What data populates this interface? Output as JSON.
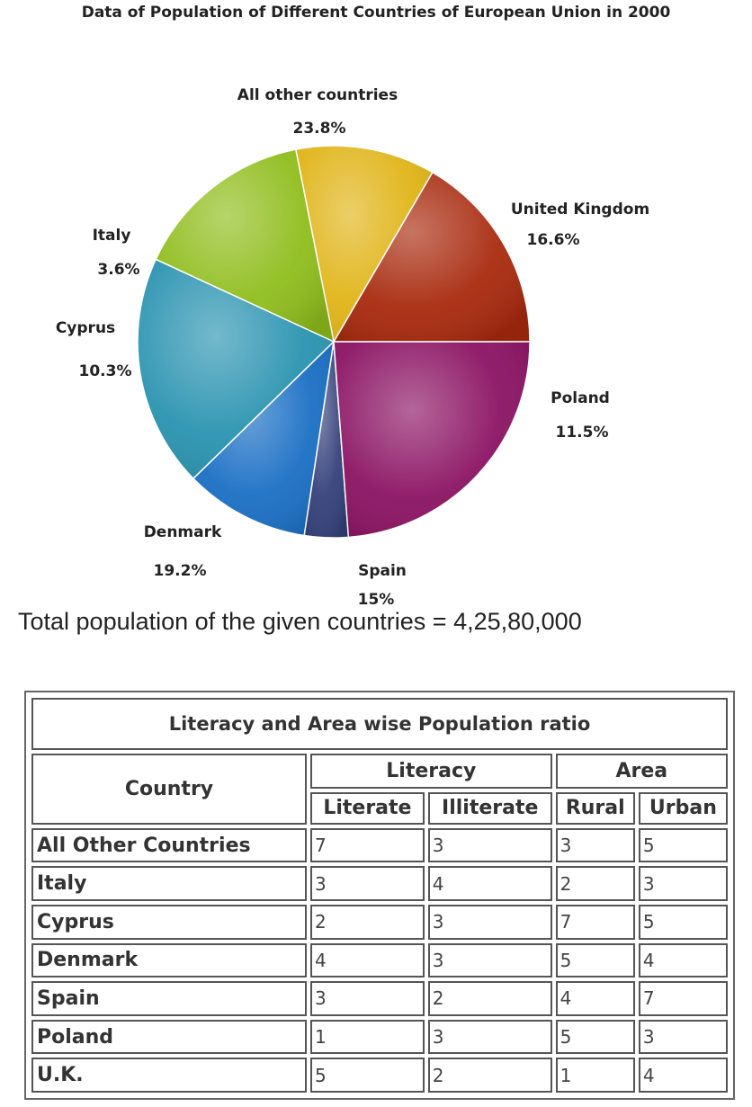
{
  "chart_data": {
    "type": "pie",
    "title": "Data of Population of Different Countries of European Union in 2000",
    "slices": [
      {
        "name": "United Kingdom",
        "value": 16.6,
        "label": "16.6%",
        "color": "#a82a0e"
      },
      {
        "name": "Poland",
        "value": 11.5,
        "label": "11.5%",
        "color": "#e0b417"
      },
      {
        "name": "Spain",
        "value": 15,
        "label": "15%",
        "color": "#8fbd1c"
      },
      {
        "name": "Denmark",
        "value": 19.2,
        "label": "19.2%",
        "color": "#2a93b0"
      },
      {
        "name": "Cyprus",
        "value": 10.3,
        "label": "10.3%",
        "color": "#1a6fc4"
      },
      {
        "name": "Italy",
        "value": 3.6,
        "label": "3.6%",
        "color": "#34407a"
      },
      {
        "name": "All other countries",
        "value": 23.8,
        "label": "23.8%",
        "color": "#8b1363"
      }
    ]
  },
  "total_line": "Total population of the given countries = 4,25,80,000",
  "table": {
    "caption": "Literacy and Area wise Population ratio",
    "country_header": "Country",
    "group_headers": [
      "Literacy",
      "Area"
    ],
    "sub_headers": [
      "Literate",
      "Illiterate",
      "Rural",
      "Urban"
    ],
    "rows": [
      {
        "name": "All Other Countries",
        "values": [
          "7",
          "3",
          "3",
          "5"
        ]
      },
      {
        "name": "Italy",
        "values": [
          "3",
          "4",
          "2",
          "3"
        ]
      },
      {
        "name": "Cyprus",
        "values": [
          "2",
          "3",
          "7",
          "5"
        ]
      },
      {
        "name": "Denmark",
        "values": [
          "4",
          "3",
          "5",
          "4"
        ]
      },
      {
        "name": "Spain",
        "values": [
          "3",
          "2",
          "4",
          "7"
        ]
      },
      {
        "name": "Poland",
        "values": [
          "1",
          "3",
          "5",
          "3"
        ]
      },
      {
        "name": "U.K.",
        "values": [
          "5",
          "2",
          "1",
          "4"
        ]
      }
    ]
  }
}
